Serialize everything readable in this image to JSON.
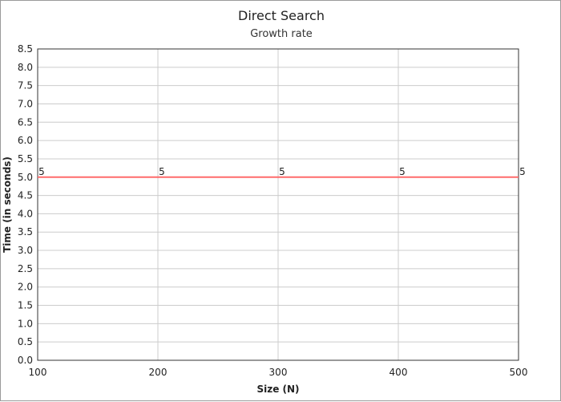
{
  "chart_data": {
    "type": "line",
    "title": "Direct Search",
    "subtitle": "Growth rate",
    "xlabel": "Size (N)",
    "ylabel": "Time (in seconds)",
    "x": [
      100,
      200,
      300,
      400,
      500
    ],
    "xlim": [
      100,
      500
    ],
    "ylim": [
      0,
      8.5
    ],
    "x_ticks": [
      100,
      200,
      300,
      400,
      500
    ],
    "y_ticks": [
      "0.0",
      "0.5",
      "1.0",
      "1.5",
      "2.0",
      "2.5",
      "3.0",
      "3.5",
      "4.0",
      "4.5",
      "5.0",
      "5.5",
      "6.0",
      "6.5",
      "7.0",
      "7.5",
      "8.0",
      "8.5"
    ],
    "grid": true,
    "series": [
      {
        "values": [
          5,
          5,
          5,
          5,
          5
        ],
        "color": "#ff6b6b"
      }
    ],
    "data_labels": [
      "5",
      "5",
      "5",
      "5",
      "5"
    ]
  }
}
